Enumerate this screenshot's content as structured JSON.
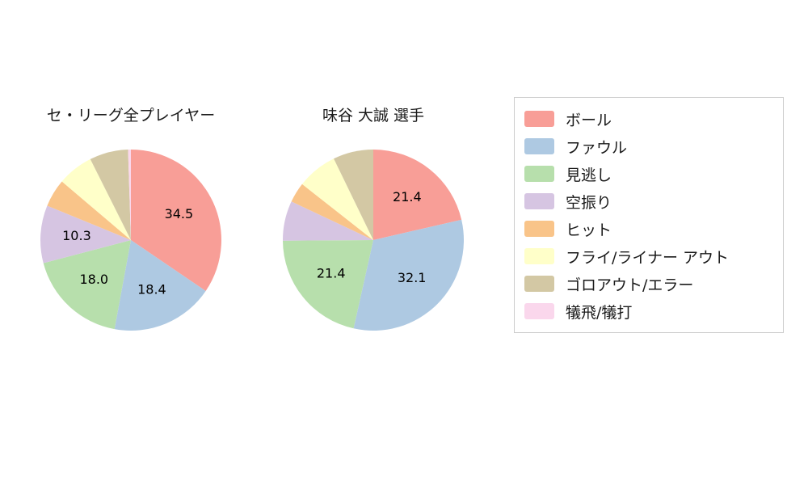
{
  "colors": {
    "ball": "#f89e97",
    "foul": "#aec9e2",
    "called_strike": "#b7dfac",
    "swinging_strike": "#d6c5e2",
    "hit": "#f9c489",
    "fly_liner_out": "#ffffc9",
    "ground_out_error": "#d3c8a4",
    "sacrifice": "#fad7ec",
    "legend_border": "#cccccc",
    "background": "#ffffff",
    "text": "#1a1a1a"
  },
  "legend": {
    "items": [
      {
        "key": "ball",
        "label": "ボール",
        "color": "#f89e97"
      },
      {
        "key": "foul",
        "label": "ファウル",
        "color": "#aec9e2"
      },
      {
        "key": "called-strike",
        "label": "見逃し",
        "color": "#b7dfac"
      },
      {
        "key": "swinging-strike",
        "label": "空振り",
        "color": "#d6c5e2"
      },
      {
        "key": "hit",
        "label": "ヒット",
        "color": "#f9c489"
      },
      {
        "key": "fly-liner-out",
        "label": "フライ/ライナー アウト",
        "color": "#ffffc9"
      },
      {
        "key": "ground-out-error",
        "label": "ゴロアウト/エラー",
        "color": "#d3c8a4"
      },
      {
        "key": "sacrifice",
        "label": "犠飛/犠打",
        "color": "#fad7ec"
      }
    ]
  },
  "chart_data": [
    {
      "type": "pie",
      "title": "セ・リーグ全プレイヤー",
      "start_angle": "top",
      "direction": "clockwise",
      "label_threshold_pct": 10,
      "label_format": "one_decimal",
      "slices": [
        {
          "key": "ball",
          "label": "ボール",
          "value": 34.5,
          "color": "#f89e97",
          "value_label_shown": true
        },
        {
          "key": "foul",
          "label": "ファウル",
          "value": 18.4,
          "color": "#aec9e2",
          "value_label_shown": true
        },
        {
          "key": "called-strike",
          "label": "見逃し",
          "value": 18.0,
          "color": "#b7dfac",
          "value_label_shown": true
        },
        {
          "key": "swinging-strike",
          "label": "空振り",
          "value": 10.3,
          "color": "#d6c5e2",
          "value_label_shown": true
        },
        {
          "key": "hit",
          "label": "ヒット",
          "value": 5.0,
          "color": "#f9c489",
          "value_label_shown": false
        },
        {
          "key": "fly-liner-out",
          "label": "フライ/ライナー アウト",
          "value": 6.4,
          "color": "#ffffc9",
          "value_label_shown": false
        },
        {
          "key": "ground-out-error",
          "label": "ゴロアウト/エラー",
          "value": 6.9,
          "color": "#d3c8a4",
          "value_label_shown": false
        },
        {
          "key": "sacrifice",
          "label": "犠飛/犠打",
          "value": 0.5,
          "color": "#fad7ec",
          "value_label_shown": false
        }
      ]
    },
    {
      "type": "pie",
      "title": "味谷 大誠  選手",
      "start_angle": "top",
      "direction": "clockwise",
      "label_threshold_pct": 10,
      "label_format": "one_decimal",
      "slices": [
        {
          "key": "ball",
          "label": "ボール",
          "value": 21.4,
          "color": "#f89e97",
          "value_label_shown": true
        },
        {
          "key": "foul",
          "label": "ファウル",
          "value": 32.1,
          "color": "#aec9e2",
          "value_label_shown": true
        },
        {
          "key": "called-strike",
          "label": "見逃し",
          "value": 21.4,
          "color": "#b7dfac",
          "value_label_shown": true
        },
        {
          "key": "swinging-strike",
          "label": "空振り",
          "value": 7.1,
          "color": "#d6c5e2",
          "value_label_shown": false
        },
        {
          "key": "hit",
          "label": "ヒット",
          "value": 3.6,
          "color": "#f9c489",
          "value_label_shown": false
        },
        {
          "key": "fly-liner-out",
          "label": "フライ/ライナー アウト",
          "value": 7.2,
          "color": "#ffffc9",
          "value_label_shown": false
        },
        {
          "key": "ground-out-error",
          "label": "ゴロアウト/エラー",
          "value": 7.2,
          "color": "#d3c8a4",
          "value_label_shown": false
        },
        {
          "key": "sacrifice",
          "label": "犠飛/犠打",
          "value": 0,
          "color": "#fad7ec",
          "value_label_shown": false
        }
      ]
    }
  ]
}
